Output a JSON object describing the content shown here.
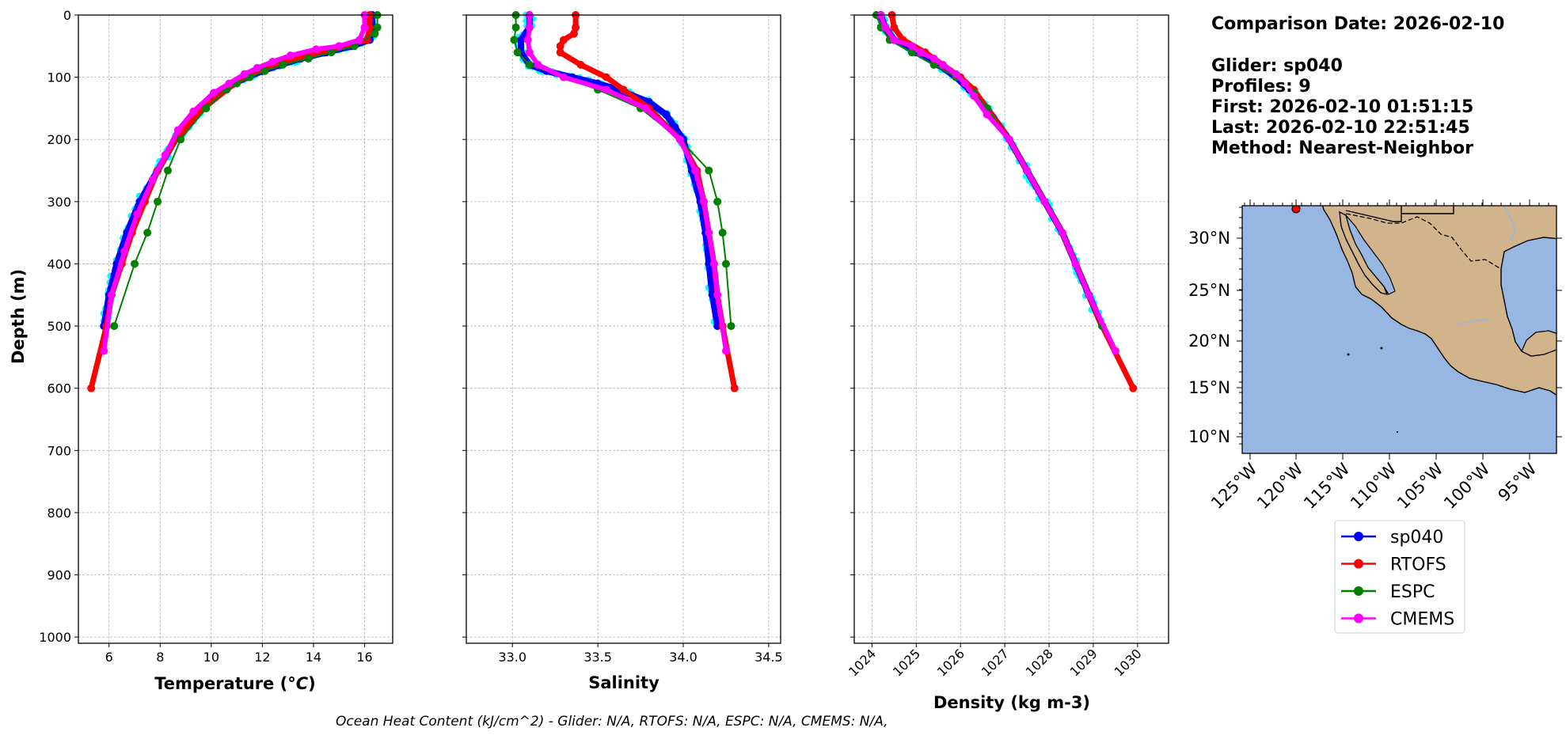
{
  "info": {
    "date_line": "Comparison Date: 2026-02-10",
    "glider_line": "Glider: sp040",
    "profiles_line": "Profiles: 9",
    "first_line": "First: 2026-02-10 01:51:15",
    "last_line": "Last: 2026-02-10 22:51:45",
    "method_line": "Method: Nearest-Neighbor"
  },
  "footnote": "Ocean Heat Content (kJ/cm^2) - Glider: N/A,  RTOFS: N/A,  ESPC: N/A,  CMEMS: N/A,",
  "colors": {
    "sp040": "#0000ff",
    "sp040_scatter": "#00ffff",
    "RTOFS": "#ff0000",
    "ESPC": "#008000",
    "CMEMS": "#ff00ff",
    "ocean": "#97b6e1",
    "land": "#d2b48c"
  },
  "legend": [
    "sp040",
    "RTOFS",
    "ESPC",
    "CMEMS"
  ],
  "map": {
    "lat_ticks": [
      "30°N",
      "25°N",
      "20°N",
      "15°N",
      "10°N"
    ],
    "lon_ticks": [
      "125°W",
      "120°W",
      "115°W",
      "110°W",
      "105°W",
      "100°W",
      "95°W"
    ],
    "glider_position": {
      "lon": -120.0,
      "lat": 33.2
    }
  },
  "chart_data": [
    {
      "type": "line",
      "xlabel": "Temperature (°C)",
      "ylabel": "Depth (m)",
      "xlim": [
        4.8,
        17.1
      ],
      "ylim": [
        1010,
        0
      ],
      "xticks": [
        6,
        8,
        10,
        12,
        14,
        16
      ],
      "yticks": [
        0,
        100,
        200,
        300,
        400,
        500,
        600,
        700,
        800,
        900,
        1000
      ],
      "grid": true,
      "series": [
        {
          "name": "sp040",
          "depth": [
            0,
            20,
            40,
            50,
            60,
            70,
            80,
            90,
            100,
            110,
            120,
            140,
            160,
            180,
            200,
            250,
            300,
            350,
            400,
            450,
            500
          ],
          "values": [
            16.3,
            16.3,
            16.2,
            15.5,
            14.5,
            13.5,
            12.7,
            12.0,
            11.4,
            10.9,
            10.5,
            9.9,
            9.4,
            9.0,
            8.6,
            7.9,
            7.2,
            6.7,
            6.3,
            6.0,
            5.8
          ]
        },
        {
          "name": "RTOFS",
          "depth": [
            0,
            20,
            40,
            60,
            80,
            100,
            120,
            150,
            200,
            250,
            300,
            350,
            400,
            450,
            500,
            600
          ],
          "values": [
            16.2,
            16.2,
            16.1,
            14.2,
            12.5,
            11.3,
            10.6,
            9.7,
            8.6,
            7.9,
            7.4,
            6.9,
            6.5,
            6.1,
            5.9,
            5.3
          ]
        },
        {
          "name": "ESPC",
          "depth": [
            0,
            20,
            30,
            50,
            60,
            70,
            80,
            90,
            100,
            110,
            120,
            150,
            200,
            250,
            300,
            350,
            400,
            500
          ],
          "values": [
            16.5,
            16.5,
            16.4,
            15.6,
            14.7,
            13.8,
            12.8,
            12.1,
            11.5,
            11.0,
            10.6,
            9.8,
            8.8,
            8.3,
            7.9,
            7.5,
            7.0,
            6.2
          ]
        },
        {
          "name": "CMEMS",
          "depth": [
            0,
            20,
            40,
            50,
            55,
            65,
            75,
            85,
            95,
            110,
            125,
            155,
            185,
            225,
            265,
            320,
            380,
            450,
            540
          ],
          "values": [
            16.0,
            16.0,
            15.8,
            15.0,
            14.1,
            13.1,
            12.4,
            11.8,
            11.3,
            10.7,
            10.1,
            9.3,
            8.7,
            8.2,
            7.7,
            7.1,
            6.6,
            6.1,
            5.8
          ]
        }
      ]
    },
    {
      "type": "line",
      "xlabel": "Salinity",
      "xlim": [
        32.73,
        34.57
      ],
      "ylim": [
        1010,
        0
      ],
      "xticks": [
        33.0,
        33.5,
        34.0,
        34.5
      ],
      "grid": true,
      "series": [
        {
          "name": "sp040",
          "depth": [
            0,
            20,
            40,
            60,
            80,
            90,
            100,
            110,
            120,
            140,
            160,
            180,
            200,
            250,
            300,
            350,
            400,
            450,
            500
          ],
          "values": [
            33.1,
            33.1,
            33.05,
            33.05,
            33.1,
            33.2,
            33.35,
            33.5,
            33.62,
            33.8,
            33.9,
            33.95,
            34.0,
            34.05,
            34.1,
            34.13,
            34.15,
            34.17,
            34.2
          ]
        },
        {
          "name": "RTOFS",
          "depth": [
            0,
            20,
            30,
            40,
            50,
            60,
            80,
            100,
            120,
            150,
            200,
            250,
            300,
            350,
            400,
            450,
            500,
            600
          ],
          "values": [
            33.37,
            33.37,
            33.36,
            33.3,
            33.28,
            33.28,
            33.4,
            33.55,
            33.65,
            33.8,
            33.98,
            34.08,
            34.12,
            34.15,
            34.18,
            34.2,
            34.23,
            34.3
          ]
        },
        {
          "name": "ESPC",
          "depth": [
            0,
            20,
            40,
            60,
            80,
            100,
            120,
            150,
            200,
            250,
            300,
            350,
            400,
            500
          ],
          "values": [
            33.02,
            33.02,
            33.01,
            33.03,
            33.1,
            33.3,
            33.5,
            33.75,
            33.98,
            34.15,
            34.2,
            34.23,
            34.25,
            34.28
          ]
        },
        {
          "name": "CMEMS",
          "depth": [
            0,
            20,
            40,
            60,
            80,
            100,
            120,
            150,
            200,
            250,
            300,
            350,
            400,
            450,
            540
          ],
          "values": [
            33.1,
            33.1,
            33.09,
            33.1,
            33.15,
            33.3,
            33.55,
            33.78,
            33.98,
            34.07,
            34.12,
            34.15,
            34.18,
            34.2,
            34.25
          ]
        }
      ]
    },
    {
      "type": "line",
      "xlabel": "Density (kg m-3)",
      "xlim": [
        1023.6,
        1030.7
      ],
      "ylim": [
        1010,
        0
      ],
      "xticks": [
        1024,
        1025,
        1026,
        1027,
        1028,
        1029,
        1030
      ],
      "grid": true,
      "series": [
        {
          "name": "sp040",
          "depth": [
            0,
            20,
            40,
            60,
            80,
            100,
            120,
            150,
            200,
            250,
            300,
            350,
            400,
            450,
            500
          ],
          "values": [
            1024.2,
            1024.3,
            1024.5,
            1025.0,
            1025.5,
            1025.9,
            1026.2,
            1026.6,
            1027.1,
            1027.5,
            1027.9,
            1028.3,
            1028.6,
            1028.9,
            1029.2
          ]
        },
        {
          "name": "RTOFS",
          "depth": [
            0,
            20,
            40,
            60,
            80,
            100,
            120,
            150,
            200,
            250,
            300,
            350,
            400,
            450,
            500,
            600
          ],
          "values": [
            1024.45,
            1024.5,
            1024.7,
            1025.2,
            1025.6,
            1026.0,
            1026.3,
            1026.6,
            1027.1,
            1027.5,
            1027.9,
            1028.3,
            1028.6,
            1028.9,
            1029.2,
            1029.9
          ]
        },
        {
          "name": "ESPC",
          "depth": [
            0,
            20,
            40,
            60,
            80,
            100,
            125,
            150,
            200,
            250,
            300,
            350,
            400,
            450,
            500
          ],
          "values": [
            1024.1,
            1024.2,
            1024.4,
            1024.9,
            1025.4,
            1025.9,
            1026.3,
            1026.6,
            1027.1,
            1027.5,
            1027.9,
            1028.3,
            1028.6,
            1028.9,
            1029.2
          ]
        },
        {
          "name": "CMEMS",
          "depth": [
            0,
            20,
            40,
            50,
            60,
            70,
            80,
            95,
            110,
            130,
            160,
            200,
            250,
            300,
            350,
            400,
            450,
            540
          ],
          "values": [
            1024.2,
            1024.3,
            1024.5,
            1024.9,
            1025.1,
            1025.4,
            1025.6,
            1025.9,
            1026.1,
            1026.3,
            1026.6,
            1027.1,
            1027.5,
            1027.9,
            1028.3,
            1028.6,
            1028.9,
            1029.5
          ]
        }
      ]
    }
  ]
}
